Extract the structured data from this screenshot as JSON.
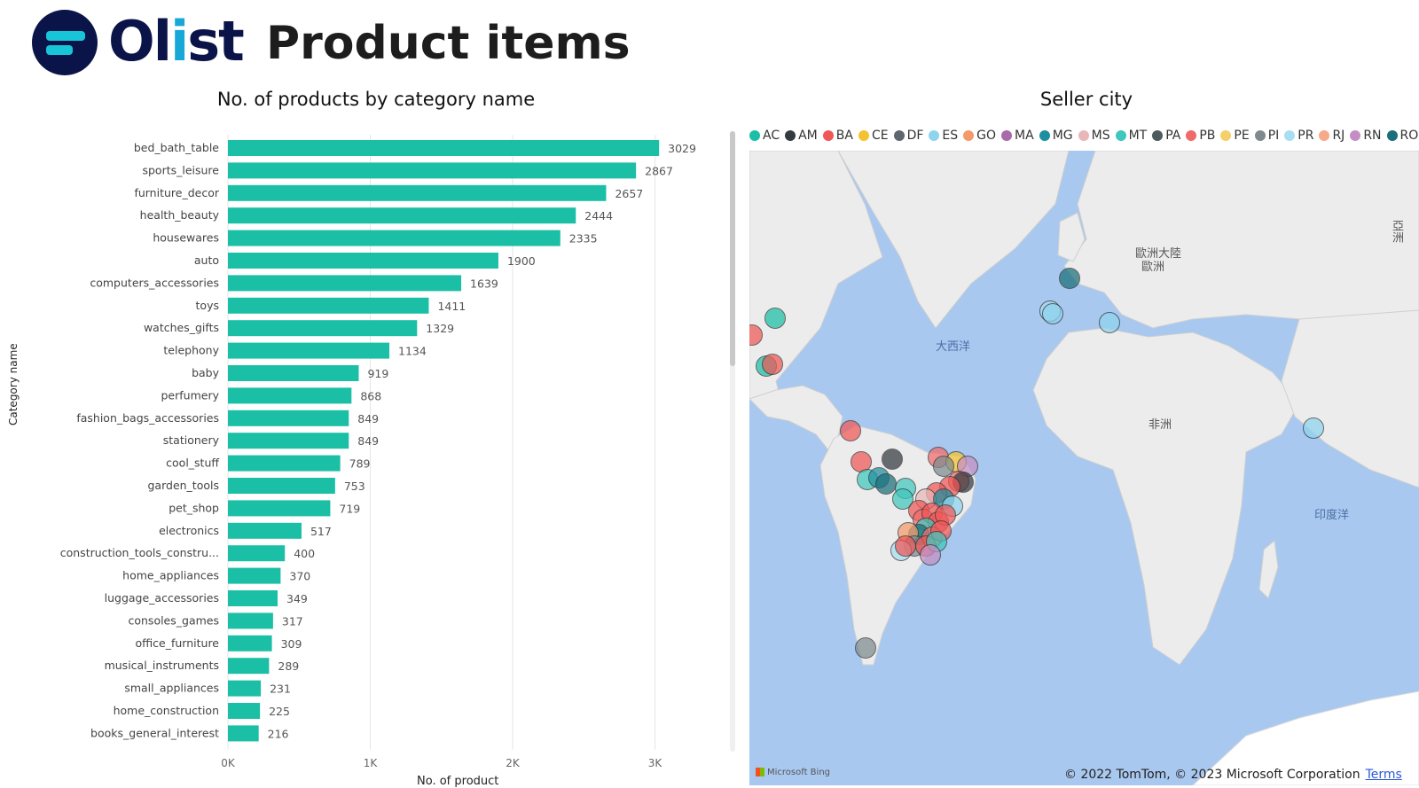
{
  "header": {
    "brand_prefix": "Ol",
    "brand_i": "i",
    "brand_suffix": "st",
    "page_title": "Product items"
  },
  "bar_chart": {
    "title": "No. of products by category name",
    "ylabel": "Category name",
    "xlabel": "No. of product",
    "bar_color": "#1bbfa5"
  },
  "chart_data": {
    "type": "bar",
    "orientation": "horizontal",
    "title": "No. of products by category name",
    "xlabel": "No. of product",
    "ylabel": "Category name",
    "xlim": [
      0,
      3000
    ],
    "x_ticks": [
      "0K",
      "1K",
      "2K",
      "3K"
    ],
    "grid": true,
    "categories": [
      "bed_bath_table",
      "sports_leisure",
      "furniture_decor",
      "health_beauty",
      "housewares",
      "auto",
      "computers_accessories",
      "toys",
      "watches_gifts",
      "telephony",
      "baby",
      "perfumery",
      "fashion_bags_accessories",
      "stationery",
      "cool_stuff",
      "garden_tools",
      "pet_shop",
      "electronics",
      "construction_tools_constru...",
      "home_appliances",
      "luggage_accessories",
      "consoles_games",
      "office_furniture",
      "musical_instruments",
      "small_appliances",
      "home_construction",
      "books_general_interest"
    ],
    "values": [
      3029,
      2867,
      2657,
      2444,
      2335,
      1900,
      1639,
      1411,
      1329,
      1134,
      919,
      868,
      849,
      849,
      789,
      753,
      719,
      517,
      400,
      370,
      349,
      317,
      309,
      289,
      231,
      225,
      216
    ]
  },
  "map": {
    "title": "Seller city",
    "legend": [
      {
        "label": "AC",
        "color": "#1bbfa5"
      },
      {
        "label": "AM",
        "color": "#333a40"
      },
      {
        "label": "BA",
        "color": "#f05757"
      },
      {
        "label": "CE",
        "color": "#f2c230"
      },
      {
        "label": "DF",
        "color": "#5e6670"
      },
      {
        "label": "ES",
        "color": "#8fd4ef"
      },
      {
        "label": "GO",
        "color": "#f49a6a"
      },
      {
        "label": "MA",
        "color": "#a86aa8"
      },
      {
        "label": "MG",
        "color": "#1e8fa0"
      },
      {
        "label": "MS",
        "color": "#e8b8b8"
      },
      {
        "label": "MT",
        "color": "#3fc7bd"
      },
      {
        "label": "PA",
        "color": "#4d5a5e"
      },
      {
        "label": "PB",
        "color": "#f06a6a"
      },
      {
        "label": "PE",
        "color": "#f4cf6a"
      },
      {
        "label": "PI",
        "color": "#7e8a8e"
      },
      {
        "label": "PR",
        "color": "#a8def4"
      },
      {
        "label": "RJ",
        "color": "#f7a98a"
      },
      {
        "label": "RN",
        "color": "#c48ec4"
      },
      {
        "label": "RO",
        "color": "#1a6f7a"
      }
    ],
    "labels": {
      "atlantic": "大西洋",
      "eurasia": "歐洲大陸",
      "europe": "歐洲",
      "africa": "非洲",
      "indian": "印度洋",
      "asia": "亞洲"
    },
    "bing": "Microsoft Bing",
    "copyright": "© 2022 TomTom, © 2023 Microsoft Corporation",
    "terms": "Terms"
  }
}
